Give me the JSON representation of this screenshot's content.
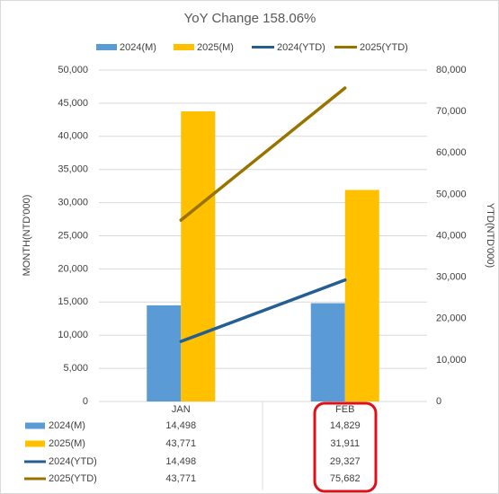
{
  "chart_data": {
    "type": "bar-line",
    "title": "YoY Change 158.06%",
    "y_label": "MONTH(NTD'000)",
    "y2_label": "YTD(NTD'000)",
    "categories": [
      "JAN",
      "FEB"
    ],
    "series": [
      {
        "name": "2024(M)",
        "type": "bar",
        "color": "#5b9bd5",
        "values": [
          14498,
          14829
        ],
        "value_labels": [
          "14,498",
          "14,829"
        ]
      },
      {
        "name": "2025(M)",
        "type": "bar",
        "color": "#ffc000",
        "values": [
          43771,
          31911
        ],
        "value_labels": [
          "43,771",
          "31,911"
        ]
      },
      {
        "name": "2024(YTD)",
        "type": "line",
        "axis": "y2",
        "color": "#255e91",
        "values": [
          14498,
          29327
        ],
        "value_labels": [
          "14,498",
          "29,327"
        ]
      },
      {
        "name": "2025(YTD)",
        "type": "line",
        "axis": "y2",
        "color": "#997300",
        "values": [
          43771,
          75682
        ],
        "value_labels": [
          "43,771",
          "75,682"
        ]
      }
    ],
    "ylim": [
      0,
      50000
    ],
    "yticks": [
      0,
      {
        "value": 5000,
        "label": "5,000"
      },
      {
        "value": 10000,
        "label": "10,000"
      },
      {
        "value": 15000,
        "label": "15,000"
      },
      {
        "value": 20000,
        "label": "20,000"
      },
      {
        "value": 25000,
        "label": "25,000"
      },
      {
        "value": 30000,
        "label": "30,000"
      },
      {
        "value": 35000,
        "label": "35,000"
      },
      {
        "value": 40000,
        "label": "40,000"
      },
      {
        "value": 45000,
        "label": "45,000"
      },
      {
        "value": 50000,
        "label": "50,000"
      }
    ],
    "y2lim": [
      0,
      80000
    ],
    "y2ticks": [
      0,
      {
        "value": 10000,
        "label": "10,000"
      },
      {
        "value": 20000,
        "label": "20,000"
      },
      {
        "value": 30000,
        "label": "30,000"
      },
      {
        "value": 40000,
        "label": "40,000"
      },
      {
        "value": 50000,
        "label": "50,000"
      },
      {
        "value": 60000,
        "label": "60,000"
      },
      {
        "value": 70000,
        "label": "70,000"
      },
      {
        "value": 80000,
        "label": "80,000"
      }
    ],
    "grid": true,
    "legend": "top",
    "data_table": true
  }
}
